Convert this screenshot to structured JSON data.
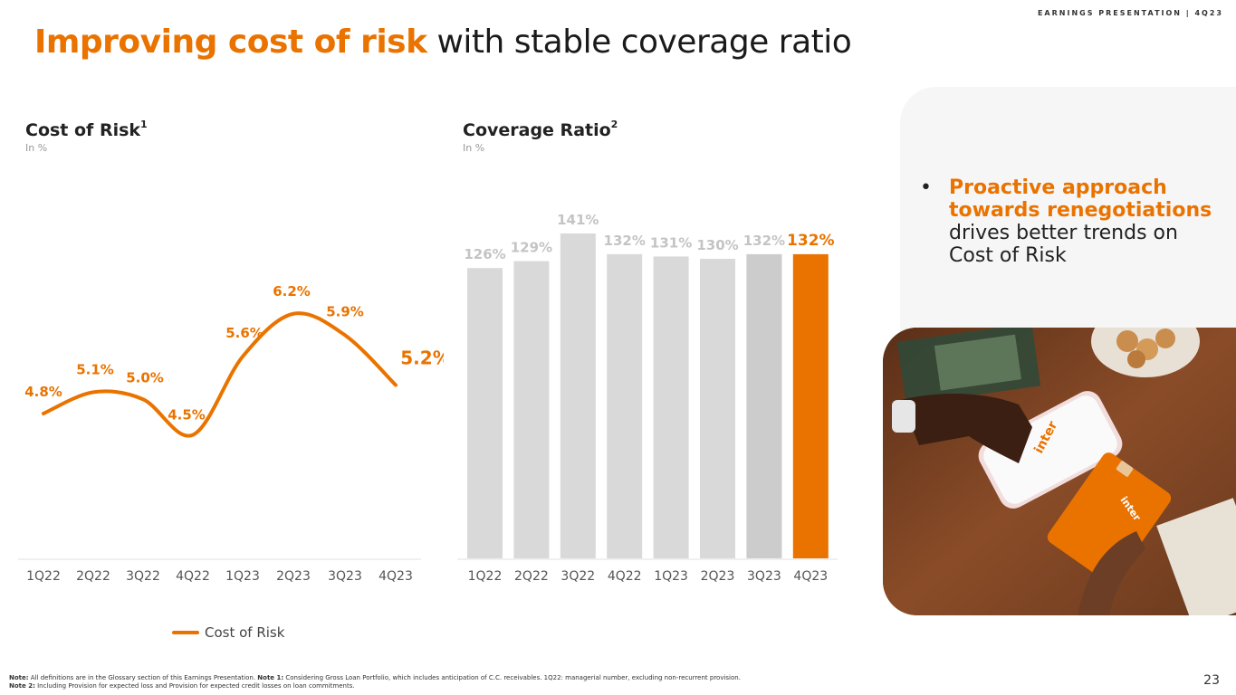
{
  "header": {
    "tag": "EARNINGS PRESENTATION | 4Q23"
  },
  "title": {
    "highlight": "Improving cost of risk",
    "rest": " with stable coverage ratio"
  },
  "colors": {
    "accent": "#EA7300",
    "bar": "#d9d9d9",
    "bar_dark": "#cccccc",
    "label_grey": "#c4c4c4"
  },
  "cost_of_risk": {
    "title": "Cost of Risk",
    "sup": "1",
    "subtitle": "In %",
    "legend": "Cost of Risk"
  },
  "coverage_ratio": {
    "title": "Coverage Ratio",
    "sup": "2",
    "subtitle": "In %"
  },
  "bullet": {
    "highlight": "Proactive approach towards renegotiations",
    "rest": " drives better trends on Cost of Risk"
  },
  "footnote": {
    "line1_bold1": "Note:",
    "line1_text1": " All definitions are in the Glossary section of this Earnings Presentation. ",
    "line1_bold2": "Note 1:",
    "line1_text2": " Considering Gross Loan Portfolio, which includes anticipation of C.C. receivables. 1Q22: managerial number, excluding non-recurrent provision.",
    "line2_bold": "Note 2:",
    "line2_text": "  Including Provision for expected loss and Provision for expected credit losses on loan commitments."
  },
  "page_number": "23",
  "chart_data": [
    {
      "type": "line",
      "title": "Cost of Risk",
      "subtitle": "In %",
      "categories": [
        "1Q22",
        "2Q22",
        "3Q22",
        "4Q22",
        "1Q23",
        "2Q23",
        "3Q23",
        "4Q23"
      ],
      "values": [
        4.8,
        5.1,
        5.0,
        4.5,
        5.6,
        6.2,
        5.9,
        5.2
      ],
      "labels": [
        "4.8%",
        "5.1%",
        "5.0%",
        "4.5%",
        "5.6%",
        "6.2%",
        "5.9%",
        "5.2%"
      ],
      "series_name": "Cost of Risk",
      "legend": "bottom"
    },
    {
      "type": "bar",
      "title": "Coverage Ratio",
      "subtitle": "In %",
      "categories": [
        "1Q22",
        "2Q22",
        "3Q22",
        "4Q22",
        "1Q23",
        "2Q23",
        "3Q23",
        "4Q23"
      ],
      "values": [
        126,
        129,
        141,
        132,
        131,
        130,
        132,
        132
      ],
      "labels": [
        "126%",
        "129%",
        "141%",
        "132%",
        "131%",
        "130%",
        "132%",
        "132%"
      ],
      "highlight_index": 7
    }
  ]
}
